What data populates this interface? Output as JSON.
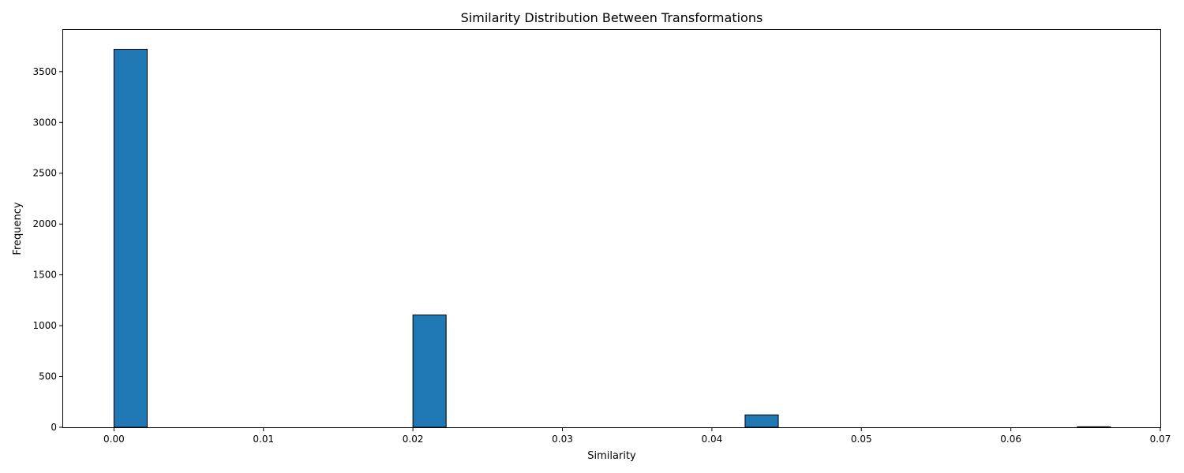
{
  "chart_data": {
    "type": "bar",
    "title": "Similarity Distribution Between Transformations",
    "xlabel": "Similarity",
    "ylabel": "Frequency",
    "xlim": [
      -0.0034,
      0.07
    ],
    "ylim": [
      0,
      3910
    ],
    "x_ticks": [
      "0.00",
      "0.01",
      "0.02",
      "0.03",
      "0.04",
      "0.05",
      "0.06",
      "0.07"
    ],
    "x_tick_values": [
      0.0,
      0.01,
      0.02,
      0.03,
      0.04,
      0.05,
      0.06,
      0.07
    ],
    "y_ticks": [
      "0",
      "500",
      "1000",
      "1500",
      "2000",
      "2500",
      "3000",
      "3500"
    ],
    "y_tick_values": [
      0,
      500,
      1000,
      1500,
      2000,
      2500,
      3000,
      3500
    ],
    "bin_width": 0.002222,
    "bins": [
      {
        "x0": 0.0,
        "count": 3720
      },
      {
        "x0": 0.02,
        "count": 1105
      },
      {
        "x0": 0.042222,
        "count": 122
      },
      {
        "x0": 0.064444,
        "count": 5
      }
    ],
    "bar_color": "#1f77b4",
    "grid": false
  }
}
